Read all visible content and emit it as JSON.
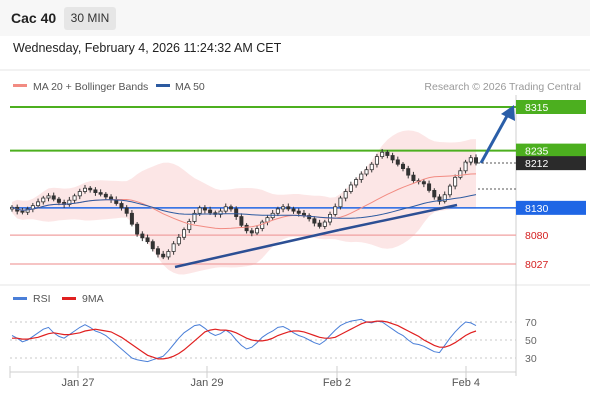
{
  "header": {
    "ticker": "Cac 40",
    "interval": "30 MIN"
  },
  "datetime": "Wednesday, February 4, 2026 11:24:32 AM CET",
  "legend": [
    {
      "label": "MA 20 + Bollinger Bands",
      "color": "#f28b82"
    },
    {
      "label": "MA 50",
      "color": "#2c5aa0"
    }
  ],
  "credit": "Research © 2026 Trading Central",
  "rsi_legend": [
    {
      "label": "RSI",
      "color": "#4a7fd8"
    },
    {
      "label": "9MA",
      "color": "#e02020"
    }
  ],
  "chart_data": [
    {
      "type": "candlestick",
      "instrument": "Cac 40",
      "timeframe": "30 MIN",
      "x_ticks": [
        "Jan 27",
        "Jan 29",
        "Feb 2",
        "Feb 4"
      ],
      "levels": [
        {
          "value": 8315,
          "label": "8315",
          "kind": "resistance",
          "color": "#4caf1f"
        },
        {
          "value": 8235,
          "label": "8235",
          "kind": "resistance",
          "color": "#4caf1f"
        },
        {
          "value": 8212,
          "label": "8212",
          "kind": "last",
          "color": "#2b2b2b"
        },
        {
          "value": 8130,
          "label": "8130",
          "kind": "pivot",
          "color": "#1f66e5"
        },
        {
          "value": 8080,
          "label": "8080",
          "kind": "support",
          "color": "#d42020"
        },
        {
          "value": 8027,
          "label": "8027",
          "kind": "support",
          "color": "#d42020"
        }
      ],
      "close": [
        8131,
        8124,
        8122,
        8128,
        8134,
        8141,
        8148,
        8152,
        8146,
        8140,
        8136,
        8144,
        8152,
        8160,
        8166,
        8163,
        8158,
        8155,
        8150,
        8145,
        8138,
        8130,
        8120,
        8100,
        8082,
        8075,
        8068,
        8055,
        8045,
        8040,
        8050,
        8064,
        8076,
        8090,
        8105,
        8120,
        8130,
        8126,
        8121,
        8118,
        8124,
        8132,
        8128,
        8114,
        8098,
        8088,
        8084,
        8092,
        8104,
        8112,
        8120,
        8128,
        8132,
        8128,
        8124,
        8120,
        8116,
        8110,
        8102,
        8096,
        8104,
        8118,
        8132,
        8148,
        8160,
        8172,
        8182,
        8192,
        8200,
        8210,
        8224,
        8232,
        8226,
        8218,
        8210,
        8202,
        8190,
        8180,
        8178,
        8174,
        8162,
        8150,
        8142,
        8154,
        8170,
        8186,
        8198,
        8214,
        8222,
        8212
      ],
      "bollinger": {
        "period": 20,
        "upper": "upper band",
        "middle": "MA 20",
        "lower": "lower band"
      },
      "ma50": true,
      "trendlines": 2,
      "projection_arrow_target": 8315
    },
    {
      "type": "line",
      "title": "RSI",
      "series": [
        {
          "name": "RSI",
          "values": [
            55,
            52,
            48,
            50,
            54,
            58,
            62,
            64,
            58,
            54,
            52,
            56,
            60,
            64,
            67,
            64,
            60,
            58,
            55,
            50,
            45,
            40,
            35,
            30,
            28,
            27,
            26,
            28,
            30,
            32,
            38,
            45,
            52,
            58,
            62,
            66,
            67,
            63,
            58,
            55,
            57,
            61,
            57,
            50,
            44,
            40,
            42,
            47,
            53,
            57,
            60,
            64,
            65,
            62,
            58,
            55,
            53,
            50,
            47,
            45,
            49,
            55,
            61,
            66,
            69,
            71,
            72,
            73,
            70,
            69,
            71,
            70,
            66,
            62,
            58,
            55,
            50,
            46,
            45,
            43,
            40,
            37,
            36,
            44,
            52,
            59,
            65,
            70,
            69,
            66
          ]
        },
        {
          "name": "9MA",
          "values": [
            52,
            52,
            51,
            51,
            52,
            53,
            55,
            57,
            58,
            57,
            56,
            56,
            57,
            58,
            60,
            61,
            62,
            61,
            60,
            59,
            56,
            53,
            49,
            45,
            41,
            37,
            33,
            31,
            29,
            29,
            30,
            32,
            35,
            39,
            44,
            49,
            54,
            59,
            61,
            62,
            61,
            61,
            60,
            58,
            55,
            52,
            50,
            49,
            49,
            50,
            52,
            55,
            57,
            59,
            60,
            60,
            59,
            57,
            55,
            53,
            52,
            52,
            53,
            56,
            59,
            62,
            65,
            68,
            70,
            70,
            71,
            71,
            70,
            68,
            66,
            63,
            60,
            57,
            54,
            50,
            47,
            44,
            42,
            42,
            44,
            47,
            51,
            55,
            58,
            60
          ]
        }
      ],
      "y_ticks": [
        70,
        50,
        30
      ],
      "ylim": [
        20,
        80
      ]
    }
  ]
}
